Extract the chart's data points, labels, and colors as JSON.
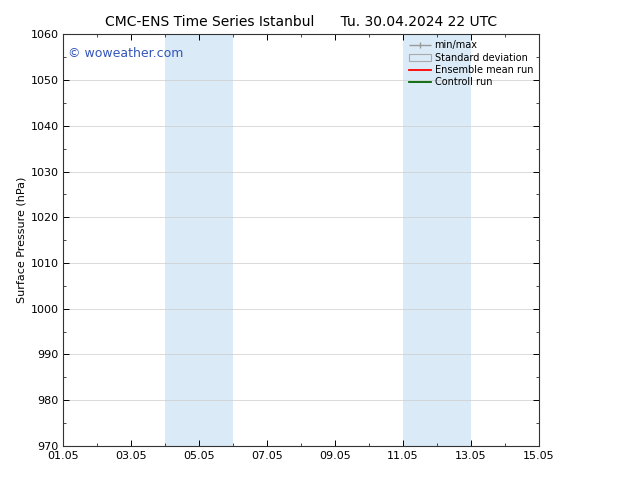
{
  "title_left": "CMC-ENS Time Series Istanbul",
  "title_right": "Tu. 30.04.2024 22 UTC",
  "ylabel": "Surface Pressure (hPa)",
  "ylim": [
    970,
    1060
  ],
  "yticks": [
    970,
    980,
    990,
    1000,
    1010,
    1020,
    1030,
    1040,
    1050,
    1060
  ],
  "xtick_labels": [
    "01.05",
    "03.05",
    "05.05",
    "07.05",
    "09.05",
    "11.05",
    "13.05",
    "15.05"
  ],
  "xlim": [
    0,
    14
  ],
  "xtick_positions": [
    0,
    2,
    4,
    6,
    8,
    10,
    12,
    14
  ],
  "shaded_regions": [
    {
      "x_start": 3.0,
      "x_end": 5.0
    },
    {
      "x_start": 10.0,
      "x_end": 12.0
    }
  ],
  "shaded_color": "#daeaf7",
  "background_color": "#ffffff",
  "watermark_text": "© woweather.com",
  "watermark_color": "#3355bb",
  "watermark_fontsize": 9,
  "legend_labels": [
    "min/max",
    "Standard deviation",
    "Ensemble mean run",
    "Controll run"
  ],
  "legend_colors_line": [
    "#999999",
    "#bbbbbb",
    "#ff0000",
    "#006600"
  ],
  "title_fontsize": 10,
  "ylabel_fontsize": 8,
  "tick_fontsize": 8,
  "grid_color": "#cccccc",
  "spine_color": "#333333",
  "legend_fontsize": 7
}
